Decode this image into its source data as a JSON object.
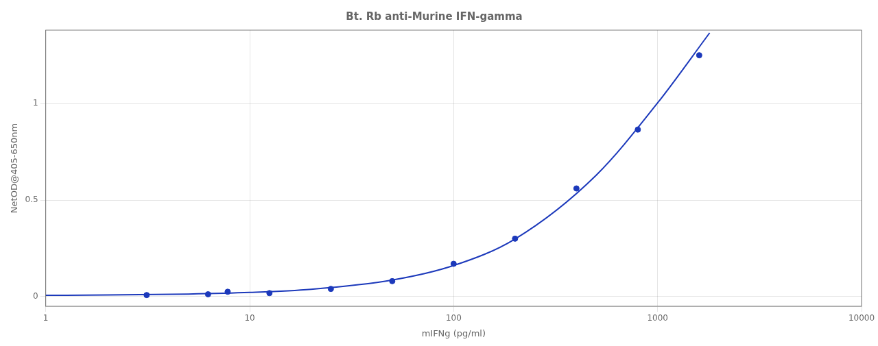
{
  "chart_data": {
    "type": "scatter",
    "title": "Bt. Rb anti-Murine IFN-gamma",
    "xlabel": "mIFNg (pg/ml)",
    "ylabel": "NetOD@405-650nm",
    "log": "x",
    "grid": true,
    "xlim": [
      1,
      10000
    ],
    "xticks": [
      1,
      10,
      100,
      1000,
      10000
    ],
    "ylim": [
      -0.05,
      1.38
    ],
    "yticks": [
      0,
      0.5,
      1
    ],
    "series": [
      {
        "type": "scatter",
        "color": "#1C39BB",
        "marker": "circle",
        "x": [
          3.125,
          6.25,
          7.8,
          12.5,
          25.0,
          50.0,
          100.0,
          200.0,
          400.0,
          800.0,
          1600.0
        ],
        "values": [
          0.008,
          0.012,
          0.025,
          0.018,
          0.04,
          0.08,
          0.17,
          0.3,
          0.56,
          0.865,
          1.25
        ]
      },
      {
        "type": "line",
        "color": "#1C39BB",
        "line_style": "solid",
        "x": [
          1,
          2,
          5,
          10,
          20,
          50,
          100,
          200,
          500,
          1000,
          1800
        ],
        "values": [
          0.0067,
          0.0083,
          0.0133,
          0.0215,
          0.0378,
          0.0855,
          0.1609,
          0.2985,
          0.6288,
          1.003,
          1.3659
        ]
      }
    ]
  }
}
